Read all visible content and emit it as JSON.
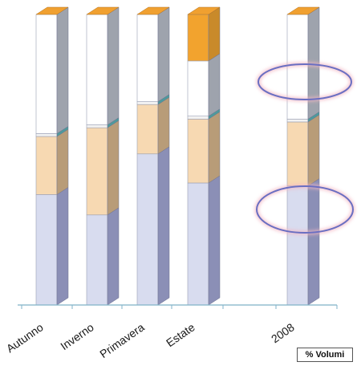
{
  "chart_data": {
    "type": "bar",
    "stacked": true,
    "style": "3d",
    "title": "",
    "xlabel": "",
    "ylabel": "",
    "units_label": "% Volumi",
    "categories": [
      "Autunno",
      "Inverno",
      "Primavera",
      "Estate",
      "2008"
    ],
    "series": [
      {
        "color": "#d8dcef",
        "values": [
          38,
          31,
          52,
          42,
          41
        ]
      },
      {
        "color": "#f7d9b2",
        "values": [
          20,
          30,
          17,
          22,
          22
        ]
      },
      {
        "color": "#f2f2f2",
        "values": [
          1,
          1,
          1,
          1,
          1
        ]
      },
      {
        "color": "#ffffff",
        "values": [
          41,
          38,
          30,
          19,
          36
        ]
      },
      {
        "color": "#f2a32e",
        "values": [
          0,
          0,
          0,
          16,
          0
        ]
      }
    ],
    "highlight_ellipses_on": "2008",
    "grid": false,
    "legend": "none"
  },
  "colors": {
    "side_shade": [
      "#8b8fb6",
      "#b89c78",
      "#4d9a9c",
      "#9ea3ad",
      "#c98a2a"
    ],
    "top_face": "#f0a030",
    "axis": "#7fb2c8",
    "ellipse": "#6a6fc2"
  }
}
